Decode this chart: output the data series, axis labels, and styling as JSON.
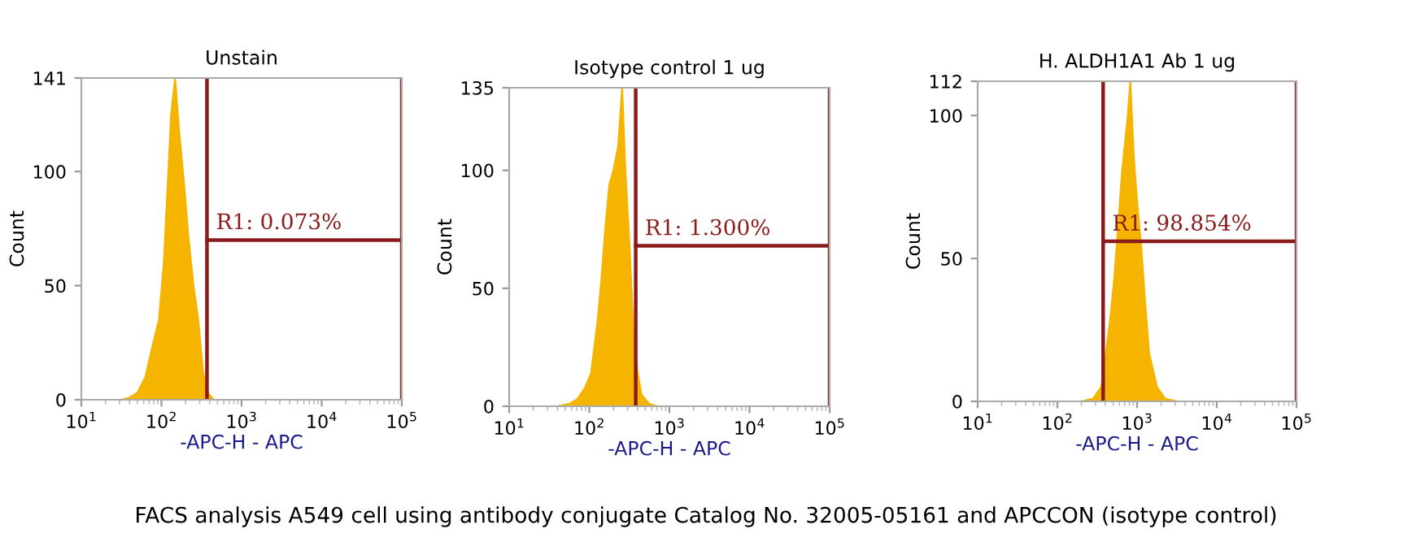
{
  "chart_data": [
    {
      "type": "area",
      "title": "Unstain",
      "xlabel": "-APC-H - APC",
      "ylabel": "Count",
      "log": "x",
      "xlim": [
        10,
        100000
      ],
      "xticks": [
        {
          "value": 10,
          "label": "10$^{1}$"
        },
        {
          "value": 100,
          "label": "10$^{2}$"
        },
        {
          "value": 1000,
          "label": "10$^{3}$"
        },
        {
          "value": 10000,
          "label": "10$^{4}$"
        },
        {
          "value": 100000,
          "label": "10$^{5}$"
        }
      ],
      "ylim": [
        0,
        141
      ],
      "yticks": [
        0,
        50,
        100,
        141
      ],
      "grid": false,
      "legend": false,
      "series": [
        {
          "color": "#f5b400",
          "x": [
            32,
            40,
            50,
            63,
            79,
            93,
            107,
            120,
            132,
            148,
            166,
            191,
            219,
            251,
            288,
            331,
            380,
            447
          ],
          "values": [
            0,
            1,
            3,
            10,
            25,
            35,
            60,
            95,
            125,
            141,
            118,
            95,
            70,
            50,
            35,
            12,
            3,
            0
          ]
        }
      ],
      "ref_lines": [
        {
          "axis": "x",
          "value": 370,
          "color": "#8b1a1a"
        },
        {
          "axis": "x",
          "value": 100000,
          "color": "#8b1a1a"
        }
      ],
      "annotations": [
        {
          "text": "R1: 0.073%",
          "x": 370,
          "y": 70
        }
      ]
    },
    {
      "type": "area",
      "title": "Isotype control 1 ug",
      "xlabel": "-APC-H - APC",
      "ylabel": "Count",
      "log": "x",
      "xlim": [
        10,
        100000
      ],
      "xticks": [
        {
          "value": 10,
          "label": "10$^{1}$"
        },
        {
          "value": 100,
          "label": "10$^{2}$"
        },
        {
          "value": 1000,
          "label": "10$^{3}$"
        },
        {
          "value": 10000,
          "label": "10$^{4}$"
        },
        {
          "value": 100000,
          "label": "10$^{5}$"
        }
      ],
      "ylim": [
        0,
        135
      ],
      "yticks": [
        0,
        50,
        100,
        135
      ],
      "grid": false,
      "legend": false,
      "series": [
        {
          "color": "#f5b400",
          "x": [
            40,
            56,
            71,
            89,
            105,
            126,
            141,
            158,
            178,
            200,
            229,
            257,
            282,
            316,
            355,
            398,
            447,
            562,
            708
          ],
          "values": [
            0,
            1,
            3,
            8,
            14,
            35,
            53,
            75,
            94,
            100,
            110,
            135,
            100,
            70,
            32,
            15,
            5,
            1,
            0
          ]
        }
      ],
      "ref_lines": [
        {
          "axis": "x",
          "value": 380,
          "color": "#8b1a1a"
        },
        {
          "axis": "x",
          "value": 100000,
          "color": "#8b1a1a"
        }
      ],
      "annotations": [
        {
          "text": "R1: 1.300%",
          "x": 380,
          "y": 68
        }
      ]
    },
    {
      "type": "area",
      "title": "H. ALDH1A1 Ab 1 ug",
      "xlabel": "-APC-H - APC",
      "ylabel": "Count",
      "log": "x",
      "xlim": [
        10,
        100000
      ],
      "xticks": [
        {
          "value": 10,
          "label": "10$^{1}$"
        },
        {
          "value": 100,
          "label": "10$^{2}$"
        },
        {
          "value": 1000,
          "label": "10$^{3}$"
        },
        {
          "value": 10000,
          "label": "10$^{4}$"
        },
        {
          "value": 100000,
          "label": "10$^{5}$"
        }
      ],
      "ylim": [
        0,
        112
      ],
      "yticks": [
        0,
        50,
        100,
        112
      ],
      "grid": false,
      "legend": false,
      "series": [
        {
          "color": "#f5b400",
          "x": [
            200,
            282,
            355,
            407,
            457,
            513,
            575,
            646,
            759,
            822,
            912,
            1000,
            1122,
            1259,
            1413,
            1778,
            2239,
            3162
          ],
          "values": [
            0,
            1,
            5,
            17,
            28,
            42,
            60,
            80,
            99,
            112,
            85,
            70,
            55,
            35,
            17,
            5,
            1,
            0
          ]
        }
      ],
      "ref_lines": [
        {
          "axis": "x",
          "value": 375,
          "color": "#8b1a1a"
        },
        {
          "axis": "x",
          "value": 100000,
          "color": "#8b1a1a"
        }
      ],
      "annotations": [
        {
          "text": "R1: 98.854%",
          "x": 375,
          "y": 56
        },
        "FACS analysis A549 cell using antibody conjugate Catalog No. 32005-05161 and APCCON (isotype control)"
      ]
    }
  ]
}
